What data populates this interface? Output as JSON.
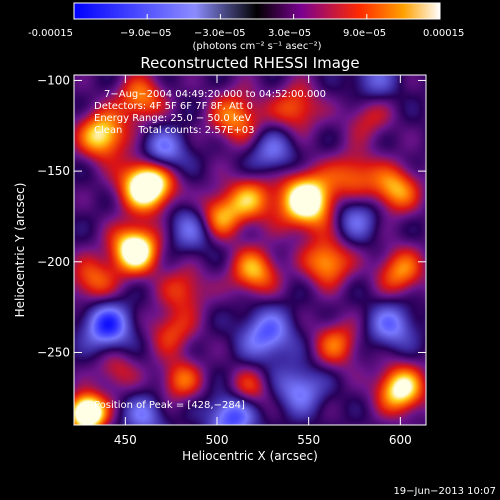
{
  "colorbar": {
    "tick_labels": [
      "-0.00015",
      "−9.0e−05",
      "−3.0e−05",
      "3.0e−05",
      "9.0e−05",
      "0.00015"
    ],
    "unit_line": "(photons cm⁻² s⁻¹ asec⁻²)",
    "range": [
      -0.00015,
      0.00015
    ]
  },
  "chart_data": {
    "type": "heatmap",
    "title": "Reconstructed RHESSI Image",
    "xlabel": "Heliocentric X (arcsec)",
    "ylabel": "Heliocentric Y (arcsec)",
    "xlim": [
      422,
      614
    ],
    "ylim": [
      -290,
      -97
    ],
    "x_ticks": [
      450,
      500,
      550,
      600
    ],
    "y_ticks": [
      -100,
      -150,
      -200,
      -250
    ],
    "x_tick_labels": [
      "450",
      "500",
      "550",
      "600"
    ],
    "y_tick_labels": [
      "−100",
      "−150",
      "−200",
      "−250"
    ],
    "annotations": [
      "7−Aug−2004 04:49:20.000 to 04:52:00.000",
      "Detectors: 4F 5F 6F 7F 8F, Att 0",
      "Energy Range: 25.0 − 50.0 keV",
      "Clean     Total counts: 2.57E+03"
    ],
    "peak_label": "Position of Peak = [428,−284]",
    "peak": [
      428,
      -284
    ],
    "sources": [
      {
        "x": 429,
        "y": -283,
        "amp": 1.6,
        "s": 7
      },
      {
        "x": 462,
        "y": -157,
        "amp": 1.5,
        "s": 10
      },
      {
        "x": 437,
        "y": -130,
        "amp": 1.0,
        "s": 9
      },
      {
        "x": 458,
        "y": -110,
        "amp": 0.7,
        "s": 9
      },
      {
        "x": 510,
        "y": -120,
        "amp": 0.7,
        "s": 10
      },
      {
        "x": 543,
        "y": -115,
        "amp": 0.6,
        "s": 9
      },
      {
        "x": 582,
        "y": -120,
        "amp": 0.4,
        "s": 9
      },
      {
        "x": 549,
        "y": -166,
        "amp": 1.3,
        "s": 11
      },
      {
        "x": 518,
        "y": -165,
        "amp": 0.7,
        "s": 9
      },
      {
        "x": 500,
        "y": -175,
        "amp": 0.9,
        "s": 9
      },
      {
        "x": 575,
        "y": -152,
        "amp": 0.6,
        "s": 9
      },
      {
        "x": 597,
        "y": -160,
        "amp": 0.8,
        "s": 9
      },
      {
        "x": 455,
        "y": -193,
        "amp": 1.3,
        "s": 9
      },
      {
        "x": 432,
        "y": -210,
        "amp": 0.6,
        "s": 9
      },
      {
        "x": 560,
        "y": -200,
        "amp": 0.8,
        "s": 9
      },
      {
        "x": 520,
        "y": -205,
        "amp": 0.8,
        "s": 9
      },
      {
        "x": 600,
        "y": -205,
        "amp": 0.7,
        "s": 9
      },
      {
        "x": 482,
        "y": -215,
        "amp": 0.5,
        "s": 9
      },
      {
        "x": 475,
        "y": -238,
        "amp": 0.5,
        "s": 9
      },
      {
        "x": 565,
        "y": -245,
        "amp": 0.6,
        "s": 9
      },
      {
        "x": 445,
        "y": -260,
        "amp": 0.4,
        "s": 8
      },
      {
        "x": 600,
        "y": -270,
        "amp": 1.1,
        "s": 9
      },
      {
        "x": 517,
        "y": -270,
        "amp": 0.5,
        "s": 8
      },
      {
        "x": 480,
        "y": -265,
        "amp": 0.6,
        "s": 8
      },
      {
        "x": 470,
        "y": -140,
        "amp": -0.7,
        "s": 9
      },
      {
        "x": 488,
        "y": -180,
        "amp": -0.6,
        "s": 10
      },
      {
        "x": 440,
        "y": -235,
        "amp": -0.9,
        "s": 9
      },
      {
        "x": 527,
        "y": -240,
        "amp": -0.7,
        "s": 10
      },
      {
        "x": 595,
        "y": -235,
        "amp": -0.6,
        "s": 9
      },
      {
        "x": 545,
        "y": -270,
        "amp": -0.6,
        "s": 9
      },
      {
        "x": 508,
        "y": -285,
        "amp": -0.8,
        "s": 9
      },
      {
        "x": 575,
        "y": -175,
        "amp": -0.5,
        "s": 9
      },
      {
        "x": 530,
        "y": -140,
        "amp": -0.5,
        "s": 9
      },
      {
        "x": 585,
        "y": -100,
        "amp": -0.4,
        "s": 9
      },
      {
        "x": 460,
        "y": -285,
        "amp": -0.5,
        "s": 8
      }
    ]
  },
  "footer": {
    "date": "19−Jun−2013 10:07"
  }
}
